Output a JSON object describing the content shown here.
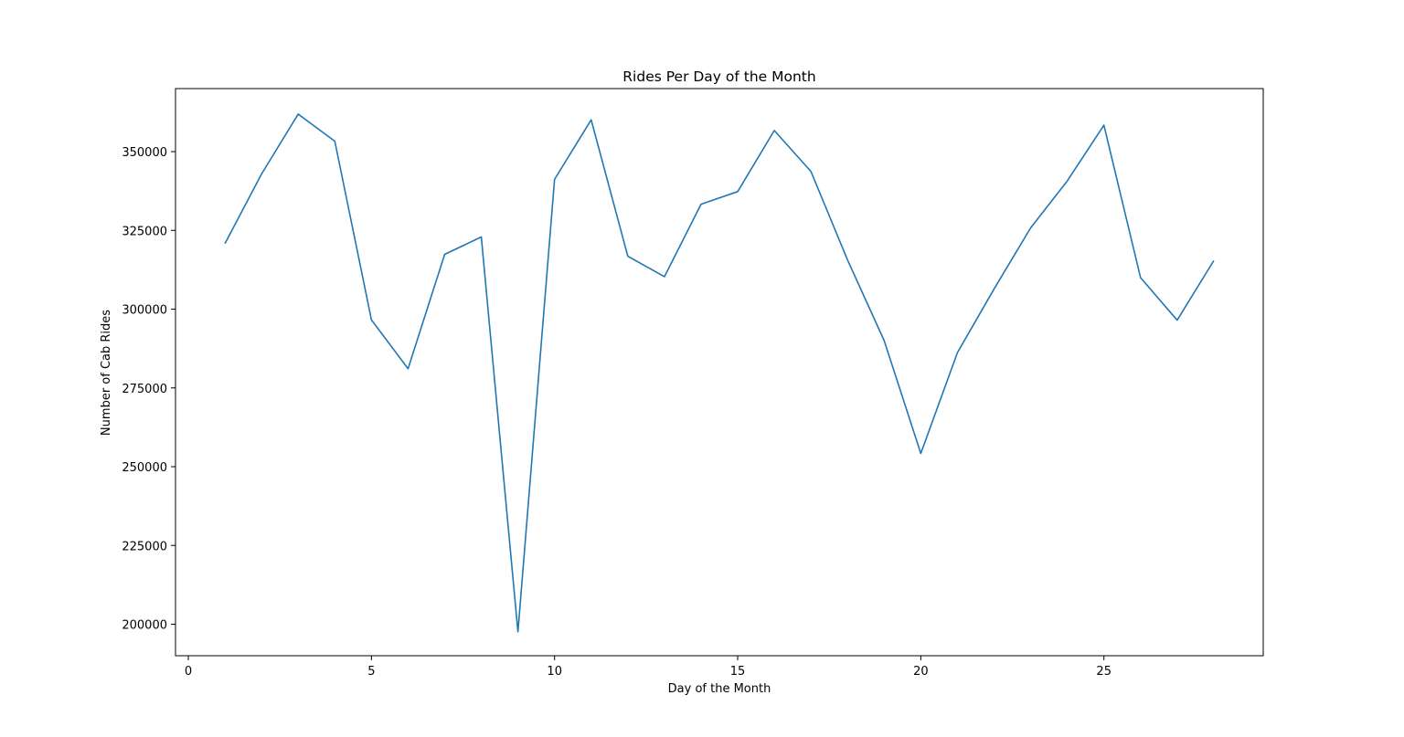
{
  "chart_data": {
    "type": "line",
    "title": "Rides Per Day of the Month",
    "xlabel": "Day of the Month",
    "ylabel": "Number of Cab Rides",
    "xlim": [
      -0.35,
      29.35
    ],
    "ylim": [
      190000,
      370000
    ],
    "xticks": [
      0,
      5,
      10,
      15,
      20,
      25
    ],
    "yticks": [
      200000,
      225000,
      250000,
      275000,
      300000,
      325000,
      350000
    ],
    "grid": false,
    "series": [
      {
        "color": "#1f77b4",
        "x": [
          1,
          2,
          3,
          4,
          5,
          6,
          7,
          8,
          9,
          10,
          11,
          12,
          13,
          14,
          15,
          16,
          17,
          18,
          19,
          20,
          21,
          22,
          23,
          24,
          25,
          26,
          27,
          28
        ],
        "y": [
          320800,
          342900,
          361900,
          353300,
          296600,
          281100,
          317400,
          322900,
          197600,
          341200,
          360100,
          316800,
          310300,
          333300,
          337300,
          356700,
          343700,
          315600,
          290000,
          254200,
          286200,
          306400,
          325800,
          340700,
          358400,
          310000,
          296500,
          315400
        ]
      }
    ]
  }
}
